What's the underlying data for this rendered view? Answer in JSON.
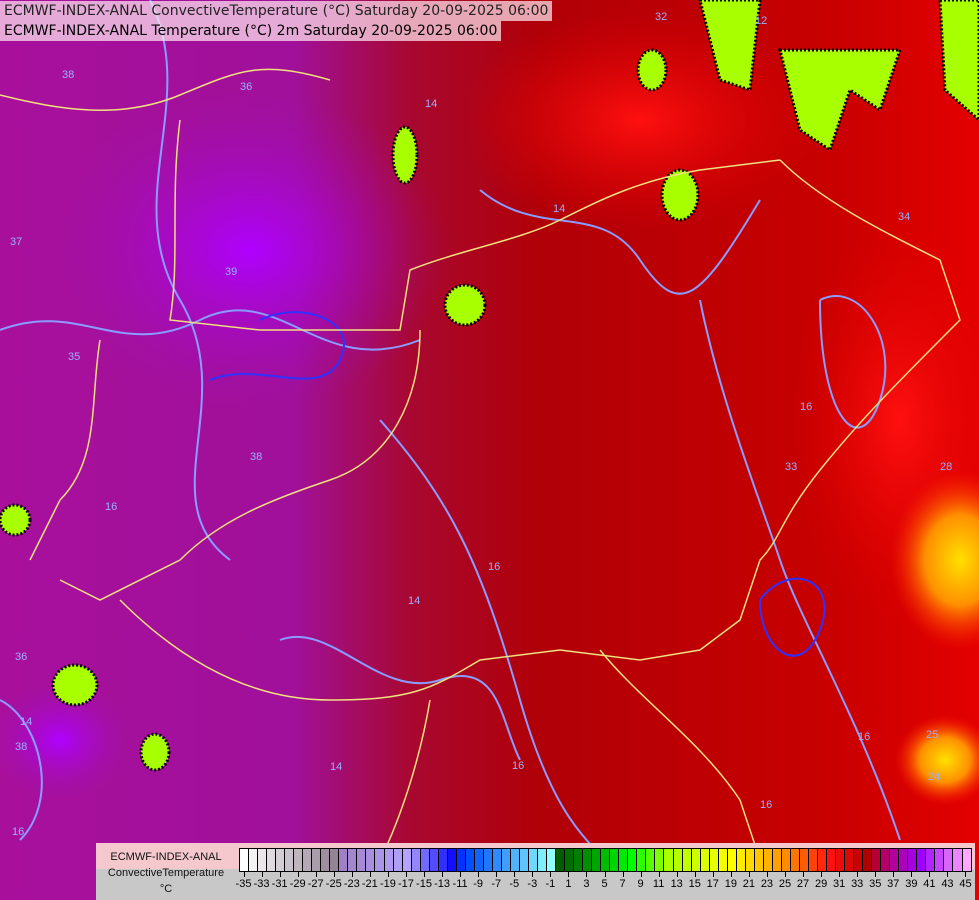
{
  "titles": {
    "line1": "ECMWF-INDEX-ANAL ConvectiveTemperature (°C) Saturday 20-09-2025 06:00",
    "line2": "ECMWF-INDEX-ANAL Temperature (°C) 2m Saturday 20-09-2025 06:00"
  },
  "legend": {
    "model": "ECMWF-INDEX-ANAL",
    "variable": "ConvectiveTemperature",
    "unit": "°C",
    "min": -35,
    "max": 45,
    "tick_labels": [
      "-35",
      "-33",
      "-31",
      "-29",
      "-27",
      "-25",
      "-23",
      "-21",
      "-19",
      "-17",
      "-15",
      "-13",
      "-11",
      "-9",
      "-7",
      "-5",
      "-3",
      "-1",
      "1",
      "3",
      "5",
      "7",
      "9",
      "11",
      "13",
      "15",
      "17",
      "19",
      "21",
      "23",
      "25",
      "27",
      "29",
      "31",
      "33",
      "35",
      "37",
      "39",
      "41",
      "43",
      "45"
    ],
    "color_stops": [
      [
        -35,
        "#ffffff"
      ],
      [
        -25,
        "#948494"
      ],
      [
        -24,
        "#a080c8"
      ],
      [
        -17,
        "#b4a4ff"
      ],
      [
        -12,
        "#1010ff"
      ],
      [
        -10,
        "#0050ff"
      ],
      [
        -1,
        "#90ffff"
      ],
      [
        0,
        "#005c00"
      ],
      [
        3,
        "#009000"
      ],
      [
        8,
        "#00ff00"
      ],
      [
        12,
        "#a8ff00"
      ],
      [
        19,
        "#ffff00"
      ],
      [
        25,
        "#ff8c00"
      ],
      [
        30,
        "#ff1010"
      ],
      [
        34,
        "#b40000"
      ],
      [
        37,
        "#b4009c"
      ],
      [
        40,
        "#a000ff"
      ],
      [
        45,
        "#ffa8ff"
      ]
    ]
  },
  "map": {
    "contour_labels": [
      "38",
      "36",
      "14",
      "37",
      "39",
      "35",
      "38",
      "16",
      "36",
      "38",
      "14",
      "16",
      "14",
      "16",
      "14",
      "16",
      "33",
      "16",
      "34",
      "28",
      "25",
      "24",
      "16",
      "14",
      "12",
      "32",
      "16"
    ],
    "colors": {
      "border": "#f0e080",
      "isotherm": "#8a9cff",
      "isotherm_strong": "#3030ff"
    }
  }
}
